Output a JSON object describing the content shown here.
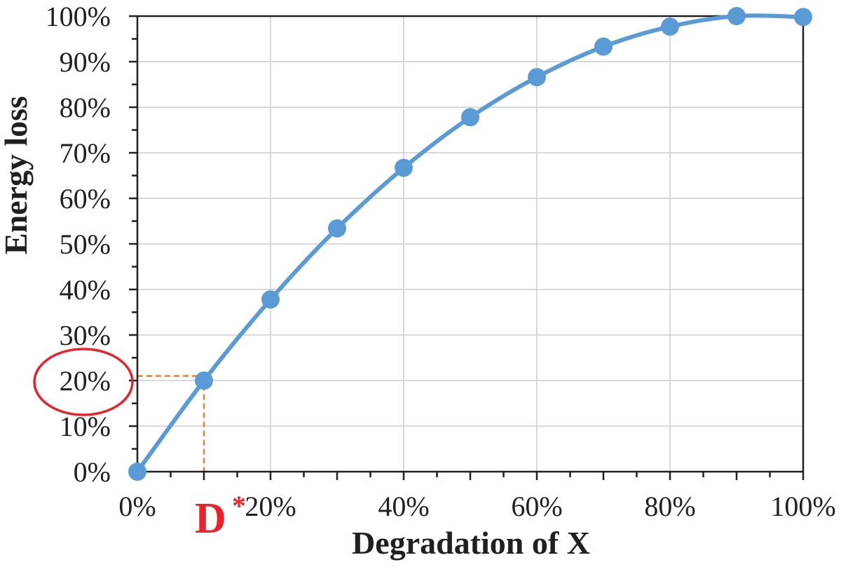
{
  "chart_data": {
    "type": "line",
    "xlabel": "Degradation of X",
    "ylabel": "Energy loss",
    "xlim": [
      0,
      100
    ],
    "ylim": [
      0,
      100
    ],
    "x_tick_labels": [
      "0%",
      "20%",
      "40%",
      "60%",
      "80%",
      "100%"
    ],
    "x_tick_values": [
      0,
      20,
      40,
      60,
      80,
      100
    ],
    "y_tick_labels": [
      "0%",
      "10%",
      "20%",
      "30%",
      "40%",
      "50%",
      "60%",
      "70%",
      "80%",
      "90%",
      "100%"
    ],
    "y_tick_values": [
      0,
      10,
      20,
      30,
      40,
      50,
      60,
      70,
      80,
      90,
      100
    ],
    "grid": true,
    "smooth": true,
    "legend": "none",
    "series": [
      {
        "x": [
          0,
          10,
          20,
          30,
          40,
          50,
          60,
          70,
          80,
          90,
          100
        ],
        "y": [
          0,
          20,
          37.8,
          53.4,
          66.7,
          77.8,
          86.6,
          93.3,
          97.7,
          100,
          99.8
        ],
        "color": "#5b9bd5"
      }
    ],
    "annotations": {
      "d_star": {
        "label": "D",
        "superscript": "*",
        "x": 10,
        "y": 21,
        "color": "#e8232a",
        "guide_color": "#ed7d31",
        "circled_tick": "20%"
      }
    }
  }
}
